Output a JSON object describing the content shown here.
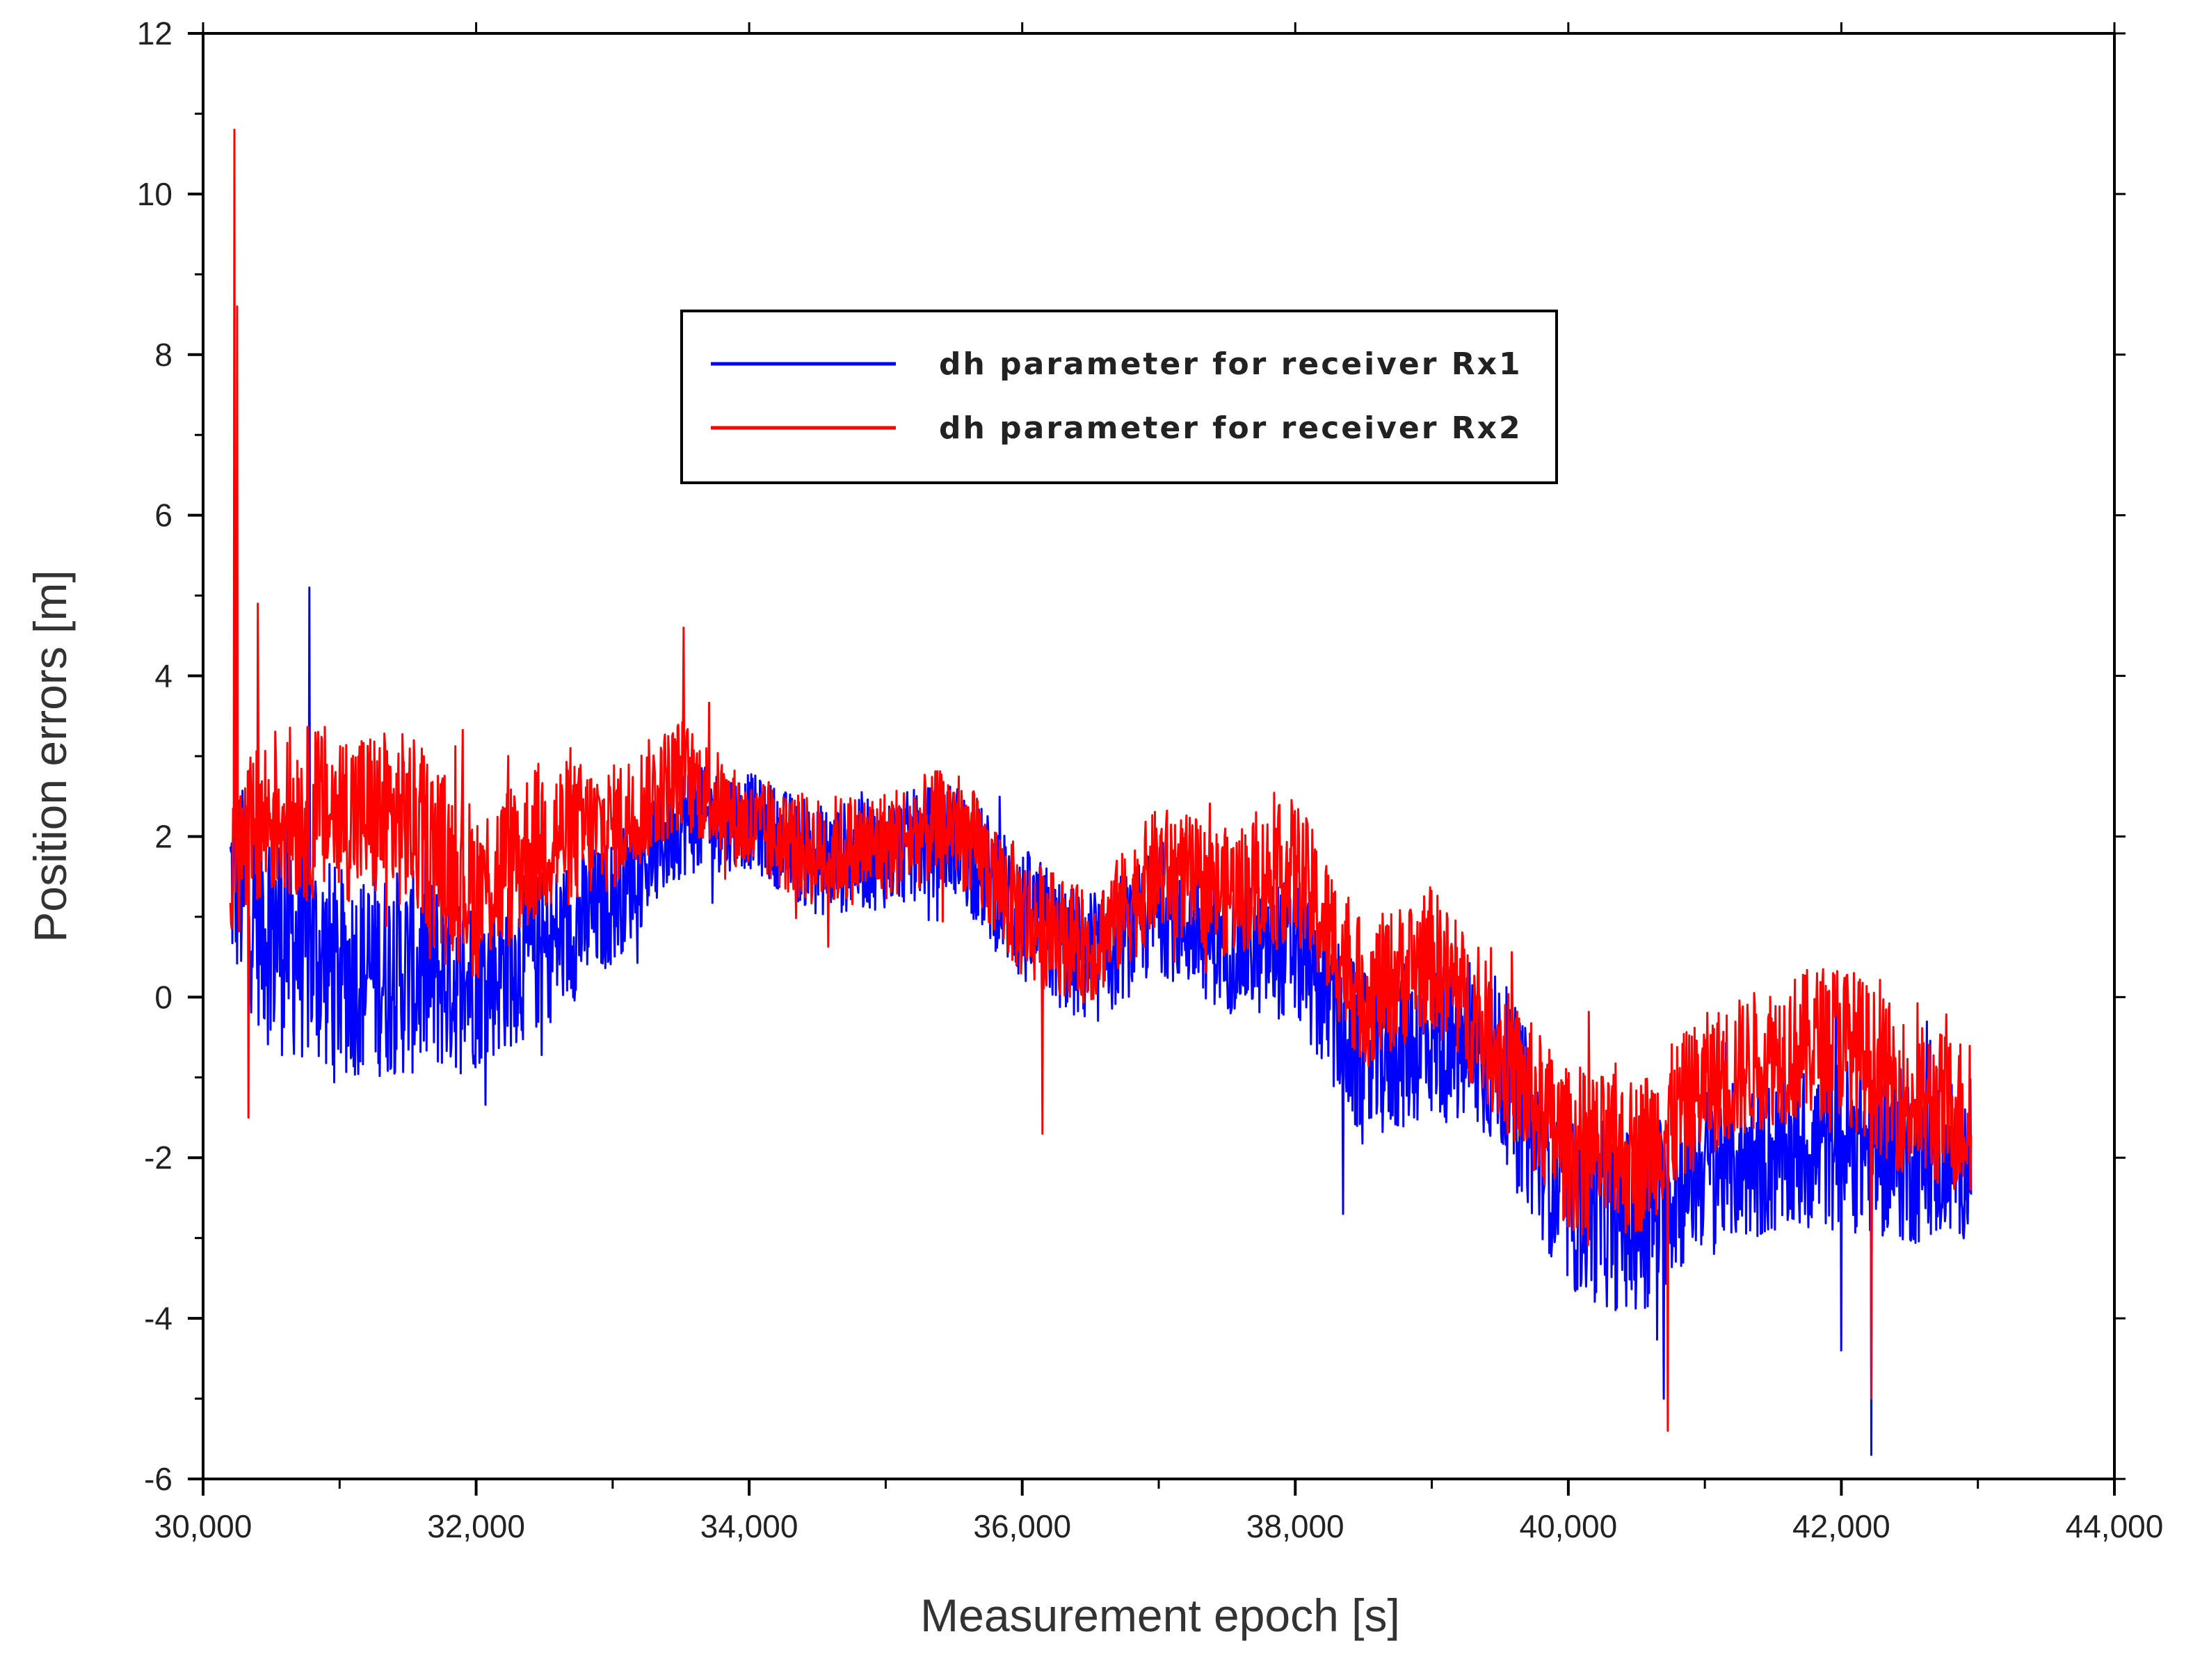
{
  "chart_data": {
    "type": "line",
    "title": "",
    "xlabel": "Measurement epoch [s]",
    "ylabel": "Position errors [m]",
    "xlim": [
      30000,
      44000
    ],
    "ylim": [
      -6,
      12
    ],
    "x_ticks": [
      30000,
      32000,
      34000,
      36000,
      38000,
      40000,
      42000,
      44000
    ],
    "x_tick_labels": [
      "30,000",
      "32,000",
      "34,000",
      "36,000",
      "38,000",
      "40,000",
      "42,000",
      "44,000"
    ],
    "y_ticks": [
      -6,
      -4,
      -2,
      0,
      2,
      4,
      6,
      8,
      10,
      12
    ],
    "y_tick_labels": [
      "-6",
      "-4",
      "-2",
      "0",
      "2",
      "4",
      "6",
      "8",
      "10",
      "12"
    ],
    "grid": false,
    "legend_position": "top-center",
    "x_range": [
      30200,
      42950
    ],
    "series": [
      {
        "name": "dh parameter for receiver Rx1",
        "color": "#0000ff",
        "center_x": [
          30200,
          30500,
          31000,
          31500,
          32000,
          32500,
          33000,
          33500,
          34000,
          34500,
          35000,
          35500,
          36000,
          36500,
          37000,
          37500,
          38000,
          38500,
          39000,
          39500,
          40000,
          40500,
          41000,
          41500,
          42000,
          42500,
          42950
        ],
        "center_y": [
          1.5,
          0.9,
          0.3,
          0.3,
          0.2,
          0.6,
          1.2,
          2.2,
          2.2,
          1.7,
          1.8,
          2.0,
          1.0,
          0.4,
          1.1,
          0.6,
          0.6,
          -0.8,
          -0.5,
          -0.8,
          -2.6,
          -2.8,
          -2.1,
          -2.0,
          -1.8,
          -2.0,
          -2.0
        ],
        "amplitude": [
          1.2,
          1.6,
          1.3,
          1.3,
          1.1,
          1.0,
          0.8,
          0.7,
          0.6,
          0.7,
          0.7,
          0.7,
          0.9,
          0.8,
          0.8,
          0.8,
          0.9,
          1.1,
          1.0,
          1.1,
          1.1,
          1.2,
          1.0,
          1.0,
          1.1,
          1.1,
          1.0
        ],
        "extremes": [
          {
            "x": 30780,
            "y": 5.1
          },
          {
            "x": 40700,
            "y": -5.0
          },
          {
            "x": 42220,
            "y": -5.7
          },
          {
            "x": 42000,
            "y": -4.4
          },
          {
            "x": 38350,
            "y": -2.7
          }
        ]
      },
      {
        "name": "dh parameter for receiver Rx2",
        "color": "#ff0000",
        "center_x": [
          30200,
          30500,
          31000,
          31500,
          32000,
          32500,
          33000,
          33500,
          34000,
          34500,
          35000,
          35500,
          36000,
          36500,
          37000,
          37500,
          38000,
          38500,
          39000,
          39500,
          40000,
          40500,
          41000,
          41500,
          42000,
          42500,
          42950
        ],
        "center_y": [
          1.6,
          2.3,
          2.3,
          2.2,
          1.3,
          2.0,
          2.1,
          2.8,
          2.1,
          1.8,
          1.9,
          2.2,
          1.0,
          0.6,
          1.6,
          1.3,
          1.6,
          0.0,
          0.5,
          -0.7,
          -1.9,
          -2.0,
          -1.1,
          -0.7,
          -0.5,
          -1.3,
          -1.5
        ],
        "amplitude": [
          1.0,
          1.1,
          1.1,
          1.1,
          1.1,
          1.0,
          0.8,
          0.7,
          0.6,
          0.7,
          0.7,
          0.7,
          0.8,
          0.7,
          0.8,
          0.8,
          0.9,
          0.9,
          0.9,
          0.9,
          1.0,
          1.0,
          0.9,
          0.9,
          1.0,
          1.0,
          1.0
        ],
        "extremes": [
          {
            "x": 30230,
            "y": 10.8
          },
          {
            "x": 30250,
            "y": 8.6
          },
          {
            "x": 30330,
            "y": -1.5
          },
          {
            "x": 30400,
            "y": 4.9
          },
          {
            "x": 33520,
            "y": 4.6
          },
          {
            "x": 36150,
            "y": -1.7
          },
          {
            "x": 40730,
            "y": -5.4
          },
          {
            "x": 42220,
            "y": -5.0
          }
        ]
      }
    ]
  }
}
